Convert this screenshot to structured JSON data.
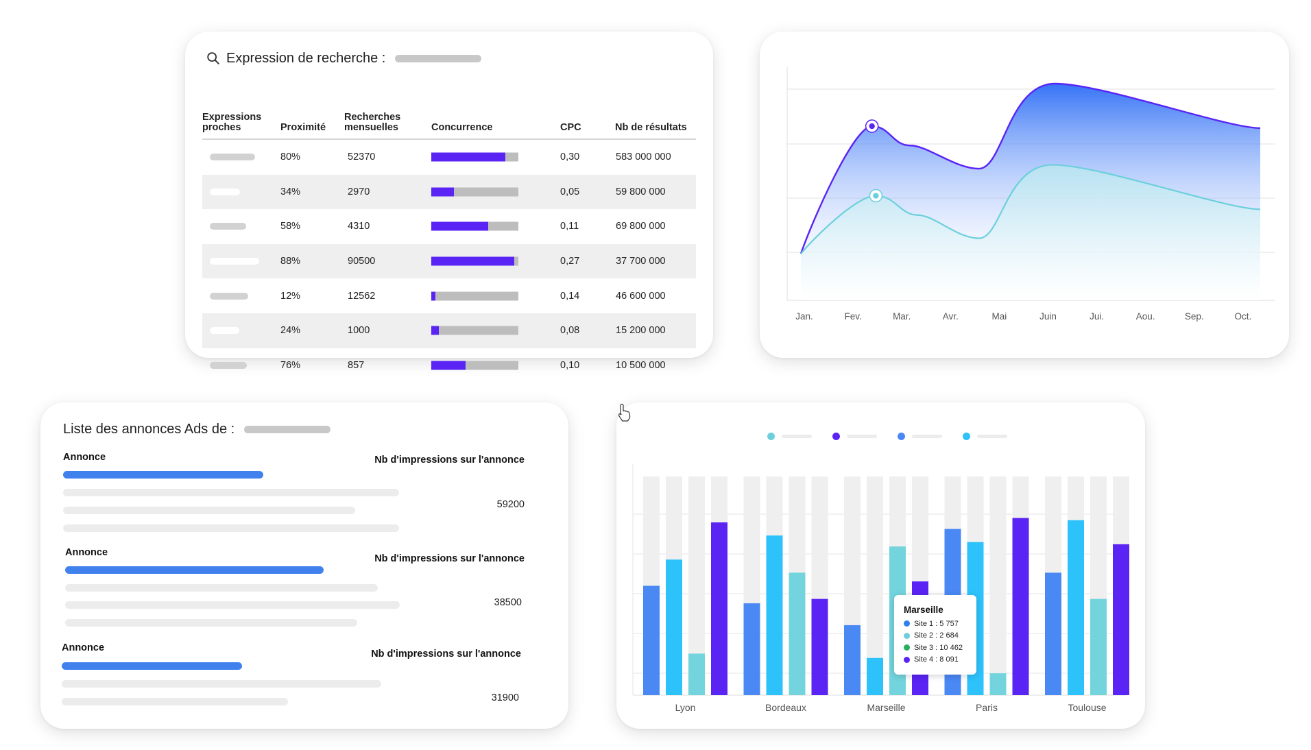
{
  "search_card": {
    "title": "Expression de recherche :",
    "columns": [
      "Expressions proches",
      "Proximité",
      "Recherches mensuelles",
      "Concurrence",
      "CPC",
      "Nb de résultats"
    ],
    "rows": [
      {
        "proximite": "80%",
        "recherches": "52370",
        "concurrence": 0.85,
        "cpc": "0,30",
        "resultats": "583 000 000"
      },
      {
        "proximite": "34%",
        "recherches": "2970",
        "concurrence": 0.26,
        "cpc": "0,05",
        "resultats": "59 800 000"
      },
      {
        "proximite": "58%",
        "recherches": "4310",
        "concurrence": 0.65,
        "cpc": "0,11",
        "resultats": "69 800 000"
      },
      {
        "proximite": "88%",
        "recherches": "90500",
        "concurrence": 0.95,
        "cpc": "0,27",
        "resultats": "37 700 000"
      },
      {
        "proximite": "12%",
        "recherches": "12562",
        "concurrence": 0.05,
        "cpc": "0,14",
        "resultats": "46 600 000"
      },
      {
        "proximite": "24%",
        "recherches": "1000",
        "concurrence": 0.09,
        "cpc": "0,08",
        "resultats": "15 200 000"
      },
      {
        "proximite": "76%",
        "recherches": "857",
        "concurrence": 0.39,
        "cpc": "0,10",
        "resultats": "10 500 000"
      }
    ]
  },
  "chart_data": [
    {
      "type": "area",
      "title": "",
      "categories": [
        "Jan.",
        "Fev.",
        "Mar.",
        "Avr.",
        "Mai",
        "Juin",
        "Jui.",
        "Aou.",
        "Sep.",
        "Oct."
      ],
      "ylim": [
        0,
        100
      ],
      "grid": true,
      "series": [
        {
          "color": "#5a24f4",
          "points": [
            [
              0,
              12
            ],
            [
              1.42,
              78
            ],
            [
              2.2,
              68
            ],
            [
              3.6,
              56
            ],
            [
              5.15,
              100
            ],
            [
              6.9,
              77
            ]
          ]
        },
        {
          "color": "#6ccfdc",
          "points": [
            [
              0,
              12
            ],
            [
              1.5,
              42
            ],
            [
              2.35,
              32
            ],
            [
              3.6,
              20
            ],
            [
              5.1,
              58
            ],
            [
              6.9,
              35
            ]
          ]
        }
      ]
    },
    {
      "type": "bar",
      "title": "",
      "categories": [
        "Lyon",
        "Bordeaux",
        "Marseille",
        "Paris",
        "Toulouse"
      ],
      "ylim": [
        0,
        100
      ],
      "series": [
        {
          "color": "#4a88f4",
          "values": [
            50,
            42,
            32,
            76,
            56
          ]
        },
        {
          "color": "#2ec2fb",
          "values": [
            62,
            73,
            17,
            70,
            80
          ]
        },
        {
          "color": "#73d4dd",
          "values": [
            19,
            56,
            68,
            10,
            44
          ]
        },
        {
          "color": "#5a24f4",
          "values": [
            79,
            44,
            52,
            81,
            69
          ]
        }
      ]
    }
  ],
  "bar_legend": [
    {
      "color": "#6ccfdc"
    },
    {
      "color": "#5a24f4"
    },
    {
      "color": "#4a88f4"
    },
    {
      "color": "#2ec2fb"
    }
  ],
  "tooltip": {
    "title": "Marseille",
    "rows": [
      {
        "label": "Site 1 : 5 757",
        "color": "#2f80ed"
      },
      {
        "label": "Site 2 : 2 684",
        "color": "#6ccfdc"
      },
      {
        "label": "Site 3 : 10 462",
        "color": "#27ae60"
      },
      {
        "label": "Site 4 : 8 091",
        "color": "#5a24f4"
      }
    ]
  },
  "ads_card": {
    "title": "Liste des annonces Ads de :",
    "ads": [
      {
        "label": "Annonce",
        "impressions_label": "Nb d'impressions sur l'annonce",
        "value": "59200"
      },
      {
        "label": "Annonce",
        "impressions_label": "Nb d'impressions sur l'annonce",
        "value": "38500"
      },
      {
        "label": "Annonce",
        "impressions_label": "Nb d'impressions sur l'annonce",
        "value": "31900"
      }
    ]
  },
  "colors": {
    "accent": "#5a24f4",
    "blue": "#4081ee",
    "cyan": "#6ccfdc",
    "placeholder": "#c8c8c8"
  },
  "icons": {
    "search": "search-icon",
    "cursor": "hand-pointer-icon"
  }
}
